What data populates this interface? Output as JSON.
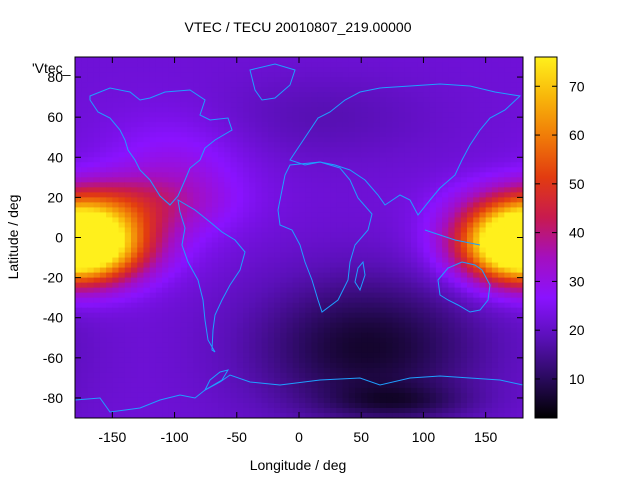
{
  "chart_data": {
    "type": "heatmap",
    "title": "VTEC / TECU 20010807_219.00000",
    "xlabel": "Longitude / deg",
    "ylabel": "Latitude / deg",
    "series_key": "'Vtec_",
    "xlim": [
      -180,
      180
    ],
    "ylim": [
      -90,
      90
    ],
    "x_ticks": [
      -150,
      -100,
      -50,
      0,
      50,
      100,
      150
    ],
    "y_ticks": [
      -80,
      -60,
      -40,
      -20,
      0,
      20,
      40,
      60,
      80
    ],
    "colorbar": {
      "range": [
        2,
        76
      ],
      "ticks": [
        10,
        20,
        30,
        40,
        50,
        60,
        70
      ],
      "palette": [
        "#000000",
        "#2a0a5e",
        "#5a10b8",
        "#8a12ff",
        "#a40fbf",
        "#c81a4f",
        "#e23b10",
        "#f07a08",
        "#f8b60a",
        "#fff01c"
      ]
    },
    "grid": false,
    "notes": "Gridded VTEC map with coastline overlay (cyan). High TEC (~60-75 TECU) near equator at longitudes -180 to -120 and 140 to 180; low TEC (<10 TECU) over southern Africa/Indian Ocean/Antarctica region."
  }
}
